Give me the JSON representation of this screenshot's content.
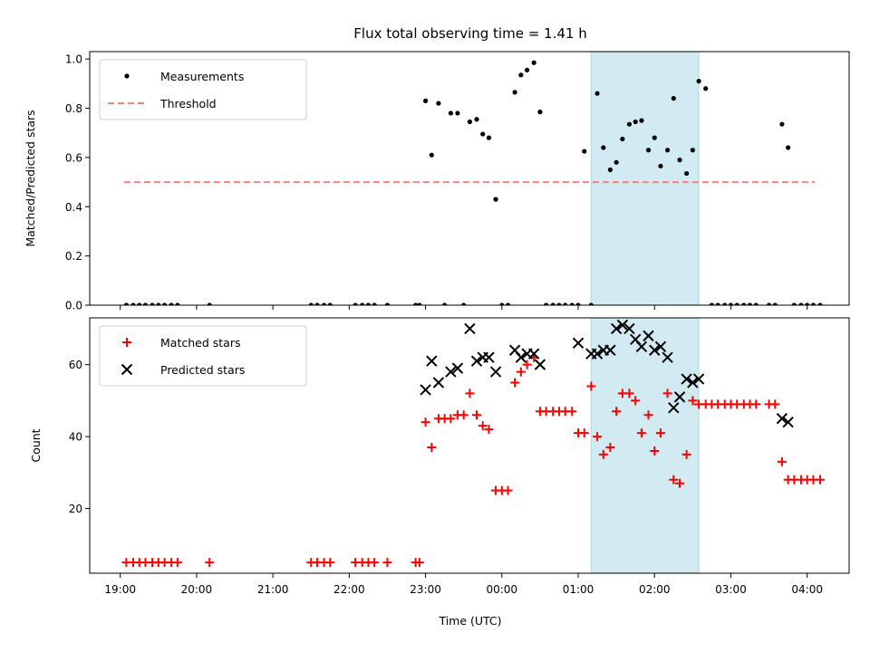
{
  "chart_data": [
    {
      "type": "scatter",
      "title": "Flux total observing time = 1.41 h",
      "xlabel": "",
      "ylabel": "Matched/Predicted stars",
      "ylim": [
        0,
        1.03
      ],
      "yticks": [
        0.0,
        0.2,
        0.4,
        0.6,
        0.8,
        1.0
      ],
      "ytick_labels": [
        "0.0",
        "0.2",
        "0.4",
        "0.6",
        "0.8",
        "1.0"
      ],
      "xlim": [
        18.6,
        28.55
      ],
      "legend_position": "top-left",
      "highlight_span": {
        "x0": 25.17,
        "x1": 26.58,
        "color": "#add8e6"
      },
      "series": [
        {
          "name": "Measurements",
          "marker": "dot",
          "color": "#000000",
          "x": [
            19.08,
            19.17,
            19.25,
            19.33,
            19.42,
            19.5,
            19.58,
            19.67,
            19.75,
            20.17,
            21.5,
            21.58,
            21.67,
            21.75,
            22.08,
            22.17,
            22.25,
            22.33,
            22.5,
            22.87,
            22.92,
            23.0,
            23.08,
            23.17,
            23.25,
            23.33,
            23.42,
            23.5,
            23.58,
            23.67,
            23.75,
            23.83,
            23.92,
            24.0,
            24.08,
            24.17,
            24.25,
            24.33,
            24.42,
            24.5,
            24.58,
            24.67,
            24.75,
            24.83,
            24.92,
            25.0,
            25.08,
            25.17,
            25.25,
            25.33,
            25.42,
            25.5,
            25.58,
            25.67,
            25.75,
            25.83,
            25.92,
            26.0,
            26.08,
            26.17,
            26.25,
            26.33,
            26.42,
            26.5,
            26.58,
            26.67,
            26.75,
            26.83,
            26.92,
            27.0,
            27.08,
            27.17,
            27.25,
            27.33,
            27.5,
            27.58,
            27.67,
            27.75,
            27.83,
            27.92,
            28.0,
            28.08,
            28.17
          ],
          "y": [
            0,
            0,
            0,
            0,
            0,
            0,
            0,
            0,
            0,
            0,
            0,
            0,
            0,
            0,
            0,
            0,
            0,
            0,
            0,
            0,
            0,
            0.83,
            0.61,
            0.82,
            0,
            0.78,
            0.78,
            0,
            0.745,
            0.755,
            0.695,
            0.68,
            0.43,
            0,
            0,
            0.865,
            0.935,
            0.955,
            0.985,
            0.785,
            0,
            0,
            0,
            0,
            0,
            0,
            0.625,
            0,
            0.86,
            0.64,
            0.55,
            0.58,
            0.675,
            0.735,
            0.745,
            0.75,
            0.63,
            0.68,
            0.565,
            0.63,
            0.84,
            0.59,
            0.535,
            0.63,
            0.91,
            0.88,
            0,
            0,
            0,
            0,
            0,
            0,
            0,
            0,
            0,
            0,
            0.735,
            0.64,
            0,
            0,
            0,
            0,
            0
          ]
        },
        {
          "name": "Threshold",
          "marker": "dashed-line",
          "color": "#ff7f7f",
          "x": [
            19.05,
            28.1
          ],
          "y": [
            0.5,
            0.5
          ]
        }
      ]
    },
    {
      "type": "scatter",
      "title": "",
      "xlabel": "Time (UTC)",
      "ylabel": "Count",
      "ylim": [
        2,
        73
      ],
      "yticks": [
        20,
        40,
        60
      ],
      "ytick_labels": [
        "20",
        "40",
        "60"
      ],
      "xlim": [
        18.6,
        28.55
      ],
      "xticks": [
        19,
        20,
        21,
        22,
        23,
        24,
        25,
        26,
        27,
        28
      ],
      "xtick_labels": [
        "19:00",
        "20:00",
        "21:00",
        "22:00",
        "23:00",
        "00:00",
        "01:00",
        "02:00",
        "03:00",
        "04:00"
      ],
      "legend_position": "top-left",
      "highlight_span": {
        "x0": 25.17,
        "x1": 26.58,
        "color": "#add8e6"
      },
      "series": [
        {
          "name": "Matched stars",
          "marker": "plus",
          "color": "#ff0000",
          "x": [
            19.08,
            19.17,
            19.25,
            19.33,
            19.42,
            19.5,
            19.58,
            19.67,
            19.75,
            20.17,
            21.5,
            21.58,
            21.67,
            21.75,
            22.08,
            22.17,
            22.25,
            22.33,
            22.5,
            22.87,
            22.92,
            23.0,
            23.08,
            23.17,
            23.25,
            23.33,
            23.42,
            23.5,
            23.58,
            23.67,
            23.75,
            23.83,
            23.92,
            24.0,
            24.08,
            24.17,
            24.25,
            24.33,
            24.42,
            24.5,
            24.58,
            24.67,
            24.75,
            24.83,
            24.92,
            25.0,
            25.08,
            25.17,
            25.25,
            25.33,
            25.42,
            25.5,
            25.58,
            25.67,
            25.75,
            25.83,
            25.92,
            26.0,
            26.08,
            26.17,
            26.25,
            26.33,
            26.42,
            26.5,
            26.58,
            26.67,
            26.75,
            26.83,
            26.92,
            27.0,
            27.08,
            27.17,
            27.25,
            27.33,
            27.5,
            27.58,
            27.67,
            27.75,
            27.83,
            27.92,
            28.0,
            28.08,
            28.17
          ],
          "y": [
            5,
            5,
            5,
            5,
            5,
            5,
            5,
            5,
            5,
            5,
            5,
            5,
            5,
            5,
            5,
            5,
            5,
            5,
            5,
            5,
            5,
            44,
            37,
            45,
            45,
            45,
            46,
            46,
            52,
            46,
            43,
            42,
            25,
            25,
            25,
            55,
            58,
            60,
            62,
            47,
            47,
            47,
            47,
            47,
            47,
            41,
            41,
            54,
            40,
            35,
            37,
            47,
            52,
            52,
            50,
            41,
            46,
            36,
            41,
            52,
            28,
            27,
            35,
            50,
            49,
            49,
            49,
            49,
            49,
            49,
            49,
            49,
            49,
            49,
            49,
            49,
            33,
            28,
            28,
            28,
            28,
            28,
            28
          ]
        },
        {
          "name": "Predicted stars",
          "marker": "x",
          "color": "#000000",
          "x": [
            23.0,
            23.08,
            23.17,
            23.33,
            23.42,
            23.58,
            23.67,
            23.75,
            23.83,
            23.92,
            24.17,
            24.25,
            24.33,
            24.42,
            24.5,
            25.0,
            25.17,
            25.25,
            25.33,
            25.42,
            25.5,
            25.58,
            25.67,
            25.75,
            25.83,
            25.92,
            26.0,
            26.08,
            26.17,
            26.25,
            26.33,
            26.42,
            26.5,
            26.58,
            27.67,
            27.75
          ],
          "y": [
            53,
            61,
            55,
            58,
            59,
            70,
            61,
            62,
            62,
            58,
            64,
            62,
            63,
            63,
            60,
            66,
            63,
            63,
            64,
            64,
            70,
            71,
            70,
            67,
            65,
            68,
            64,
            65,
            62,
            48,
            51,
            56,
            55,
            56,
            45,
            44
          ]
        }
      ]
    }
  ]
}
